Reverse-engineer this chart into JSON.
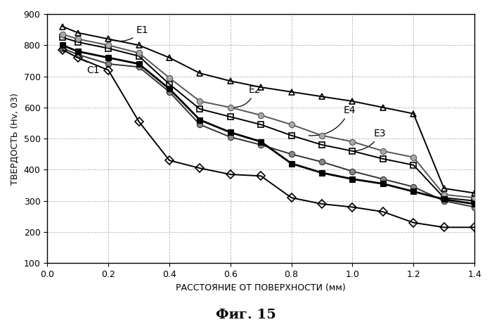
{
  "title": "Фиг. 15",
  "xlabel": "РАССТОЯНИЕ ОТ ПОВЕРХНОСТИ (мм)",
  "ylabel": "ТВЕРДОСТЬ (Hv, 03)",
  "xlim": [
    0.0,
    1.4
  ],
  "ylim": [
    100,
    900
  ],
  "xticks": [
    0.0,
    0.2,
    0.4,
    0.6,
    0.8,
    1.0,
    1.2,
    1.4
  ],
  "yticks": [
    100,
    200,
    300,
    400,
    500,
    600,
    700,
    800,
    900
  ],
  "x_vals": [
    0.05,
    0.1,
    0.2,
    0.3,
    0.4,
    0.5,
    0.6,
    0.7,
    0.8,
    0.9,
    1.0,
    1.1,
    1.2,
    1.3,
    1.4
  ],
  "E1_y": [
    860,
    840,
    820,
    800,
    760,
    710,
    685,
    665,
    650,
    635,
    620,
    600,
    580,
    340,
    325
  ],
  "E2_y": [
    835,
    820,
    800,
    775,
    695,
    620,
    600,
    575,
    545,
    510,
    490,
    460,
    440,
    320,
    310
  ],
  "E3_y": [
    825,
    810,
    790,
    765,
    675,
    595,
    570,
    545,
    510,
    480,
    460,
    435,
    415,
    310,
    300
  ],
  "E4_y": [
    800,
    780,
    760,
    740,
    660,
    560,
    520,
    490,
    420,
    390,
    370,
    355,
    330,
    305,
    290
  ],
  "C1_y": [
    790,
    770,
    740,
    730,
    650,
    545,
    505,
    480,
    450,
    425,
    395,
    370,
    345,
    300,
    280
  ],
  "C1d_y": [
    785,
    760,
    720,
    555,
    430,
    405,
    385,
    380,
    310,
    290,
    280,
    265,
    230,
    215,
    215
  ]
}
